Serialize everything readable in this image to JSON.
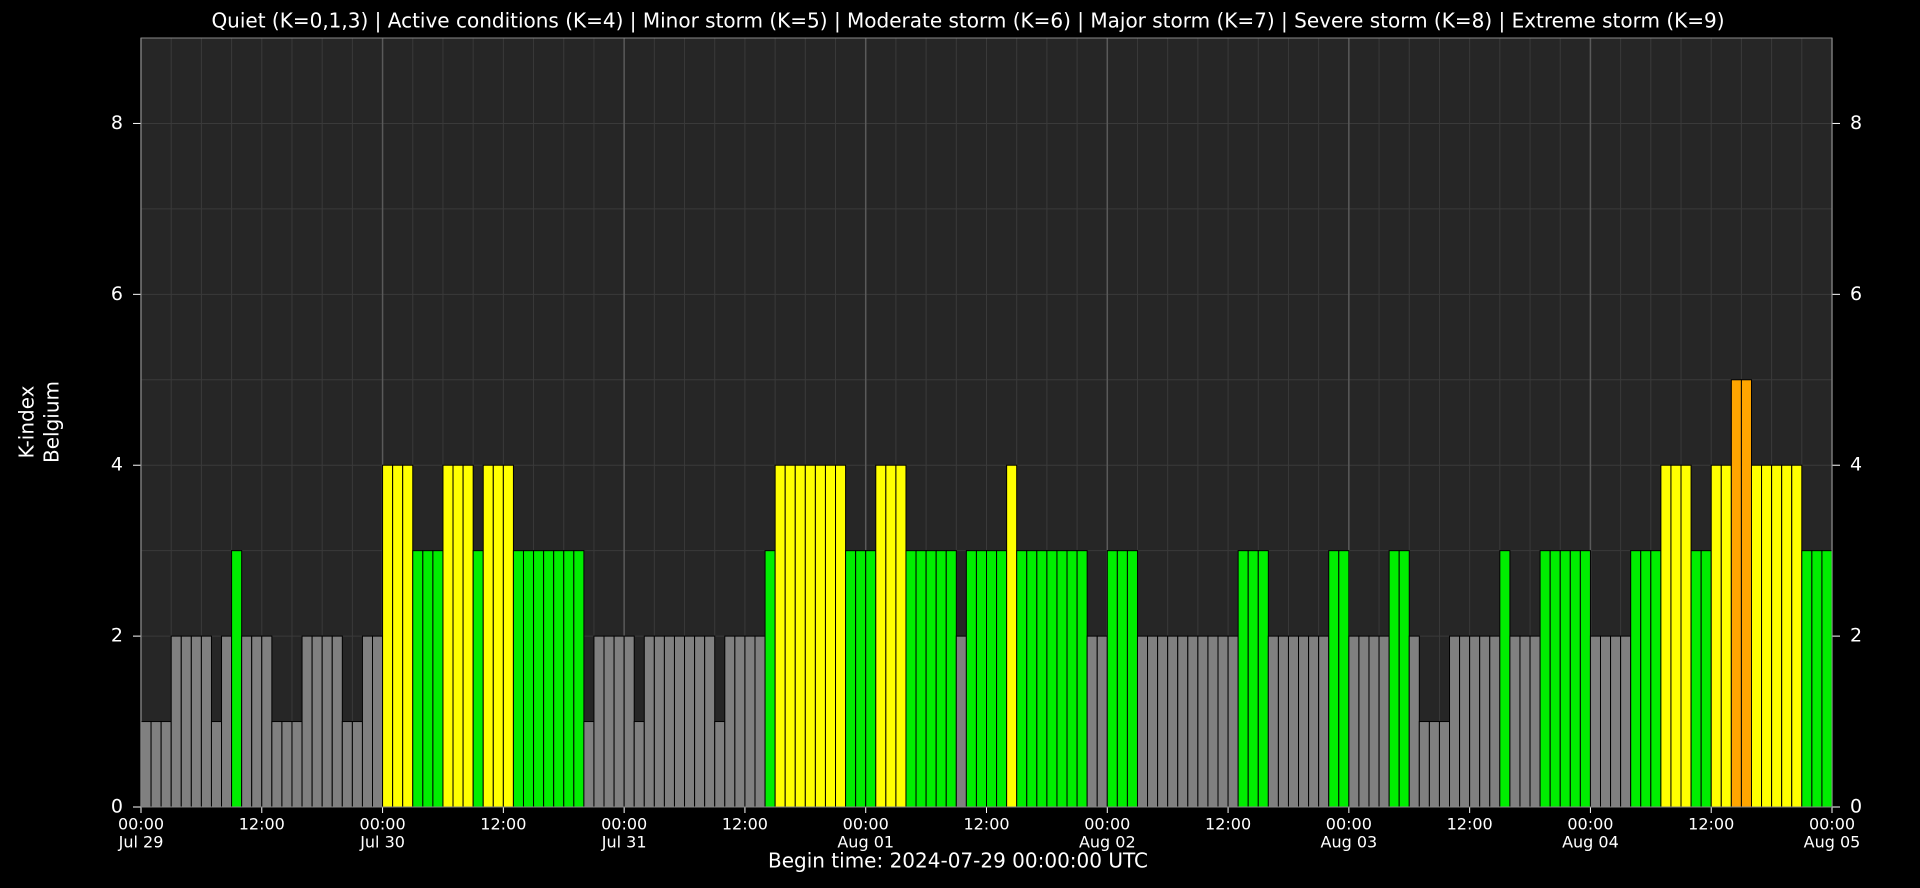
{
  "chart_data": {
    "type": "bar",
    "title": "Quiet (K=0,1,3) | Active conditions (K=4) | Minor storm (K=5) | Moderate storm (K=6) | Major storm (K=7) | Severe storm (K=8) | Extreme storm (K=9)",
    "ylabel": [
      "K-index",
      "Belgium"
    ],
    "xlabel": "Begin time: 2024-07-29 00:00:00 UTC",
    "values": [
      1,
      1,
      1,
      2,
      2,
      2,
      2,
      1,
      2,
      3,
      2,
      2,
      2,
      1,
      1,
      1,
      2,
      2,
      2,
      2,
      1,
      1,
      2,
      2,
      4,
      4,
      4,
      3,
      3,
      3,
      4,
      4,
      4,
      3,
      4,
      4,
      4,
      3,
      3,
      3,
      3,
      3,
      3,
      3,
      1,
      2,
      2,
      2,
      2,
      1,
      2,
      2,
      2,
      2,
      2,
      2,
      2,
      1,
      2,
      2,
      2,
      2,
      3,
      4,
      4,
      4,
      4,
      4,
      4,
      4,
      3,
      3,
      3,
      4,
      4,
      4,
      3,
      3,
      3,
      3,
      3,
      2,
      3,
      3,
      3,
      3,
      4,
      3,
      3,
      3,
      3,
      3,
      3,
      3,
      2,
      2,
      3,
      3,
      3,
      2,
      2,
      2,
      2,
      2,
      2,
      2,
      2,
      2,
      2,
      3,
      3,
      3,
      2,
      2,
      2,
      2,
      2,
      2,
      3,
      3,
      2,
      2,
      2,
      2,
      3,
      3,
      2,
      1,
      1,
      1,
      2,
      2,
      2,
      2,
      2,
      3,
      2,
      2,
      2,
      3,
      3,
      3,
      3,
      3,
      2,
      2,
      2,
      2,
      3,
      3,
      3,
      4,
      4,
      4,
      3,
      3,
      4,
      4,
      5,
      5,
      4,
      4,
      4,
      4,
      4,
      3,
      3,
      3
    ],
    "level_colors": [
      "#808080",
      "#808080",
      "#808080",
      "#00ee00",
      "#ffff00",
      "#ffa500",
      "#ff5500",
      "#ff0000",
      "#cc0000",
      "#880000"
    ],
    "xlim": [
      0,
      168
    ],
    "xticks": [
      {
        "value": 0,
        "label": "00:00",
        "date": "Jul 29"
      },
      {
        "value": 12,
        "label": "12:00"
      },
      {
        "value": 24,
        "label": "00:00",
        "date": "Jul 30"
      },
      {
        "value": 36,
        "label": "12:00"
      },
      {
        "value": 48,
        "label": "00:00",
        "date": "Jul 31"
      },
      {
        "value": 60,
        "label": "12:00"
      },
      {
        "value": 72,
        "label": "00:00",
        "date": "Aug 01"
      },
      {
        "value": 84,
        "label": "12:00"
      },
      {
        "value": 96,
        "label": "00:00",
        "date": "Aug 02"
      },
      {
        "value": 108,
        "label": "12:00"
      },
      {
        "value": 120,
        "label": "00:00",
        "date": "Aug 03"
      },
      {
        "value": 132,
        "label": "12:00"
      },
      {
        "value": 144,
        "label": "00:00",
        "date": "Aug 04"
      },
      {
        "value": 156,
        "label": "12:00"
      },
      {
        "value": 168,
        "label": "00:00",
        "date": "Aug 05"
      }
    ],
    "ylim": [
      0,
      9
    ],
    "yticks": [
      0,
      2,
      4,
      6,
      8
    ],
    "grid": true
  }
}
